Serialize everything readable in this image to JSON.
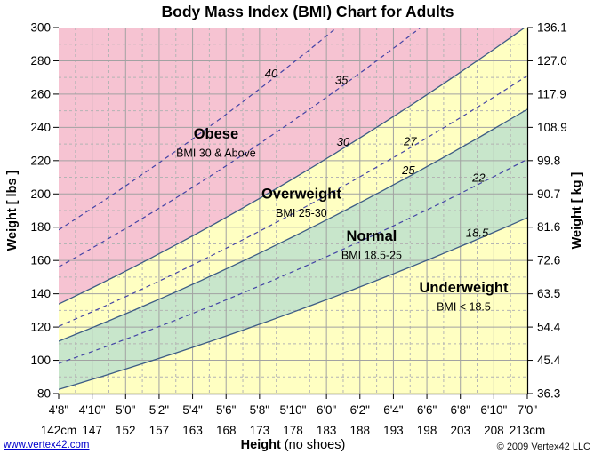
{
  "title": "Body Mass Index (BMI) Chart for Adults",
  "footer": {
    "link": "www.vertex42.com",
    "copyright": "© 2009 Vertex42 LLC"
  },
  "chart_data": {
    "type": "area",
    "title": "Body Mass Index (BMI) Chart for Adults",
    "bmi_formula": "weight_lbs = BMI * height_in^2 / 703",
    "x_axis": {
      "title_bold": "Height",
      "title_normal": " (no shoes)",
      "unit": "inches",
      "range": [
        56,
        84
      ],
      "major_step_in": 2,
      "minor_step_in": 1,
      "tick_labels_feet": [
        "4'8\"",
        "4'10\"",
        "5'0\"",
        "5'2\"",
        "5'4\"",
        "5'6\"",
        "5'8\"",
        "5'10\"",
        "6'0\"",
        "6'2\"",
        "6'4\"",
        "6'6\"",
        "6'8\"",
        "6'10\"",
        "7'0\""
      ],
      "tick_labels_cm": [
        "142cm",
        "147",
        "152",
        "157",
        "163",
        "168",
        "173",
        "178",
        "183",
        "188",
        "193",
        "198",
        "203",
        "208",
        "213cm"
      ]
    },
    "y_axis_left": {
      "title": "Weight [ lbs ]",
      "range": [
        80,
        300
      ],
      "major_step": 20,
      "minor_step": 10,
      "tick_labels": [
        "80",
        "100",
        "120",
        "140",
        "160",
        "180",
        "200",
        "220",
        "240",
        "260",
        "280",
        "300"
      ]
    },
    "y_axis_right": {
      "title": "Weight [ kg ]",
      "tick_labels": [
        "36.3",
        "45.4",
        "54.4",
        "63.5",
        "72.6",
        "81.6",
        "90.7",
        "99.8",
        "108.9",
        "117.9",
        "127.0",
        "136.1"
      ]
    },
    "regions": [
      {
        "name": "Obese",
        "sublabel": "BMI 30 & Above",
        "bmi_range": [
          30,
          null
        ],
        "fill": "#f6c3d2",
        "label_at": {
          "h_in": 65.4,
          "w_lbs": 236.5
        }
      },
      {
        "name": "Overweight",
        "sublabel": "BMI 25-30",
        "bmi_range": [
          25,
          30
        ],
        "fill": "#ffffc2",
        "label_at": {
          "h_in": 70.5,
          "w_lbs": 200.5
        }
      },
      {
        "name": "Normal",
        "sublabel": "BMI 18.5-25",
        "bmi_range": [
          18.5,
          25
        ],
        "fill": "#c8e6cb",
        "label_at": {
          "h_in": 74.7,
          "w_lbs": 175.0
        }
      },
      {
        "name": "Underweight",
        "sublabel": "BMI < 18.5",
        "bmi_range": [
          null,
          18.5
        ],
        "fill": "#ffffc2",
        "label_at": {
          "h_in": 80.2,
          "w_lbs": 144.0
        }
      }
    ],
    "bmi_lines": [
      {
        "bmi": 40,
        "label": "40",
        "style": "dashed",
        "label_h_in": 68.7
      },
      {
        "bmi": 35,
        "label": "35",
        "style": "dashed",
        "label_h_in": 72.9
      },
      {
        "bmi": 30,
        "label": "30",
        "style": "solid",
        "label_h_in": 73.0
      },
      {
        "bmi": 27,
        "label": "27",
        "style": "dashed",
        "label_h_in": 77.0
      },
      {
        "bmi": 25,
        "label": "25",
        "style": "solid",
        "label_h_in": 76.9
      },
      {
        "bmi": 22,
        "label": "22",
        "style": "dashed",
        "label_h_in": 81.1
      },
      {
        "bmi": 18.5,
        "label": "18.5",
        "style": "solid",
        "label_h_in": 81.0
      }
    ],
    "colors": {
      "region_obese": "#f6c3d2",
      "region_overweight_underweight": "#ffffc2",
      "region_normal": "#c8e6cb",
      "boundary_line": "#3d5c85",
      "dashed_bmi_line": "#4343a5",
      "gridline_major": "#a2a2a2",
      "gridline_minor": "#b4b4b4",
      "axis": "#000000"
    }
  }
}
